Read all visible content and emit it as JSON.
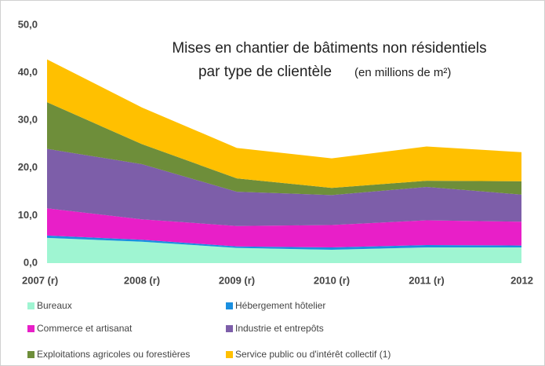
{
  "chart_data": {
    "type": "stacked_area",
    "title": [
      "Mises en chantier de bâtiments non résidentiels",
      "par type de  clientèle"
    ],
    "subtitle": "(en millions de m²)",
    "categories": [
      "2007 (r)",
      "2008 (r)",
      "2009 (r)",
      "2010 (r)",
      "2011 (r)",
      "2012"
    ],
    "series": [
      {
        "name": "Bureaux",
        "color": "#9ff5d2",
        "values": [
          5.3,
          4.5,
          3.2,
          2.8,
          3.3,
          3.3
        ]
      },
      {
        "name": "Hébergement hôtelier",
        "color": "#1a8fe0",
        "values": [
          0.5,
          0.4,
          0.3,
          0.5,
          0.5,
          0.4
        ]
      },
      {
        "name": "Commerce et artisanat",
        "color": "#e81fc8",
        "values": [
          5.7,
          4.3,
          4.3,
          4.7,
          5.2,
          5.0
        ]
      },
      {
        "name": "Industrie et entrepôts",
        "color": "#7d5ea9",
        "values": [
          12.5,
          11.6,
          7.2,
          6.3,
          7.0,
          5.7
        ]
      },
      {
        "name": "Exploitations agricoles ou forestières",
        "color": "#6e8e3a",
        "values": [
          9.8,
          4.2,
          2.8,
          1.5,
          1.3,
          2.8
        ]
      },
      {
        "name": "Service public ou d'intérêt collectif (1)",
        "color": "#ffc000",
        "values": [
          9.0,
          7.7,
          6.4,
          6.2,
          7.2,
          6.1
        ]
      }
    ],
    "ylim": [
      0,
      50
    ],
    "yticks": [
      {
        "value": 0,
        "label": "0,0"
      },
      {
        "value": 10,
        "label": "10,0"
      },
      {
        "value": 20,
        "label": "20,0"
      },
      {
        "value": 30,
        "label": "30,0"
      },
      {
        "value": 40,
        "label": "40,0"
      },
      {
        "value": 50,
        "label": "50,0"
      }
    ],
    "grid": false
  }
}
